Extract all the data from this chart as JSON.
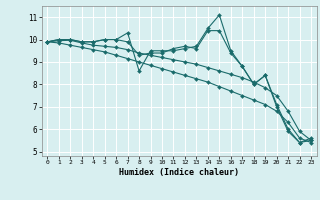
{
  "xlabel": "Humidex (Indice chaleur)",
  "ylabel": "",
  "xlim": [
    -0.5,
    23.5
  ],
  "ylim": [
    4.8,
    11.5
  ],
  "yticks": [
    5,
    6,
    7,
    8,
    9,
    10,
    11
  ],
  "xticks": [
    0,
    1,
    2,
    3,
    4,
    5,
    6,
    7,
    8,
    9,
    10,
    11,
    12,
    13,
    14,
    15,
    16,
    17,
    18,
    19,
    20,
    21,
    22,
    23
  ],
  "bg_color": "#d8eff0",
  "grid_color": "#ffffff",
  "line_color": "#1a6b6b",
  "lines": [
    [
      9.9,
      10.0,
      10.0,
      9.9,
      9.9,
      10.0,
      10.0,
      10.3,
      8.6,
      9.5,
      9.5,
      9.5,
      9.6,
      9.7,
      10.5,
      11.1,
      9.5,
      8.8,
      8.0,
      8.4,
      7.1,
      6.0,
      5.4,
      5.5
    ],
    [
      9.9,
      10.0,
      10.0,
      9.9,
      9.9,
      10.0,
      10.0,
      9.9,
      9.3,
      9.4,
      9.4,
      9.6,
      9.7,
      9.6,
      10.4,
      10.4,
      9.4,
      8.8,
      8.0,
      8.4,
      7.0,
      5.9,
      5.4,
      5.6
    ],
    [
      9.9,
      9.95,
      9.97,
      9.85,
      9.75,
      9.7,
      9.65,
      9.55,
      9.4,
      9.3,
      9.2,
      9.1,
      9.0,
      8.9,
      8.75,
      8.6,
      8.45,
      8.3,
      8.1,
      7.85,
      7.5,
      6.8,
      5.9,
      5.5
    ],
    [
      9.9,
      9.85,
      9.75,
      9.65,
      9.55,
      9.45,
      9.3,
      9.15,
      9.0,
      8.85,
      8.7,
      8.55,
      8.4,
      8.25,
      8.1,
      7.9,
      7.7,
      7.5,
      7.3,
      7.1,
      6.8,
      6.3,
      5.6,
      5.4
    ]
  ]
}
